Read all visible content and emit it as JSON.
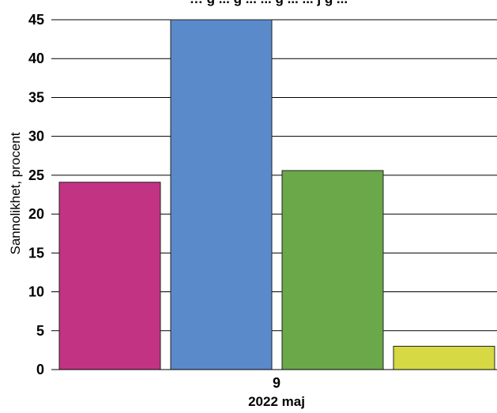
{
  "chart_data": {
    "type": "bar",
    "title": "… g ... g ... ... g ... ... j g ...",
    "ylabel": "Sannolikhet, procent",
    "x_category_label": "9",
    "xlabel": "2022 maj",
    "ylim": [
      0,
      45
    ],
    "yticks": [
      "0",
      "5",
      "10",
      "15",
      "20",
      "25",
      "30",
      "35",
      "40",
      "45"
    ],
    "grid": true,
    "series": [
      {
        "values": [
          24.1
        ],
        "color": "#c23384"
      },
      {
        "values": [
          45.0
        ],
        "color": "#5a8ac9"
      },
      {
        "values": [
          25.6
        ],
        "color": "#6aa84a"
      },
      {
        "values": [
          3.0
        ],
        "color": "#d6d844"
      }
    ]
  }
}
